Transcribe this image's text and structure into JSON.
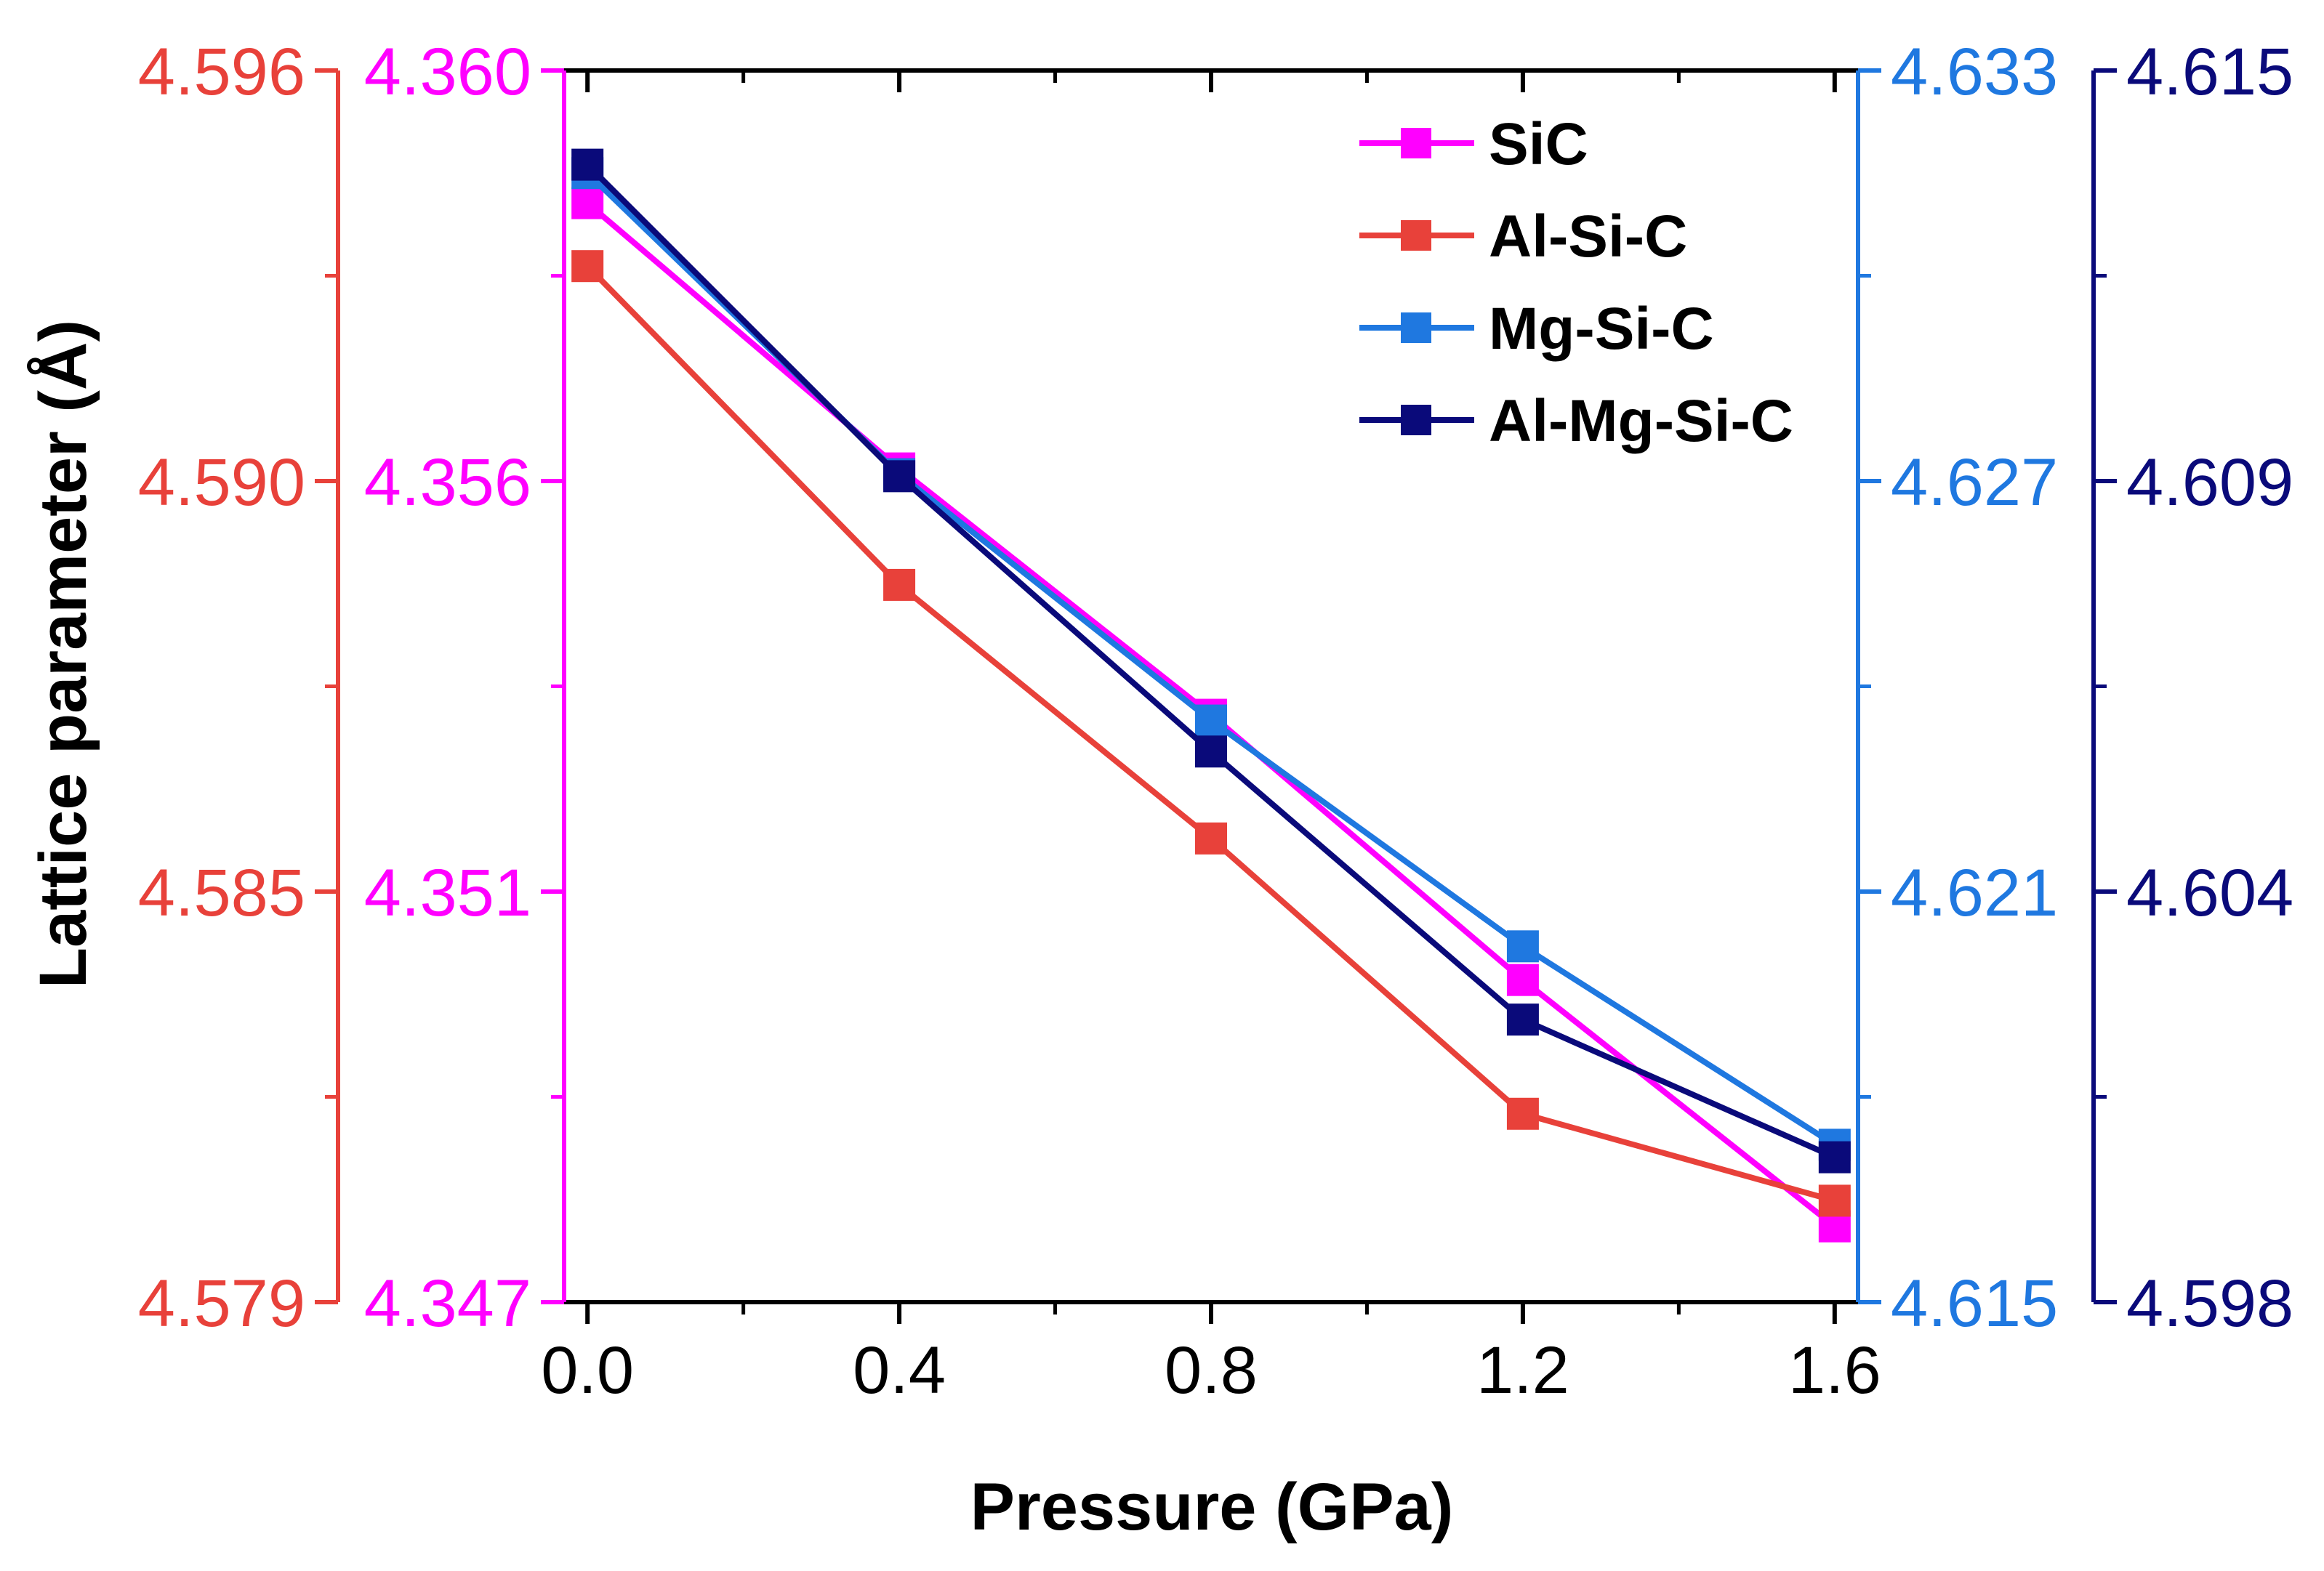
{
  "chart_data": {
    "type": "line",
    "xlabel": "Pressure (GPa)",
    "ylabel": "Lattice parameter (Å)",
    "x": [
      0.0,
      0.4,
      0.8,
      1.2,
      1.6
    ],
    "xlim": [
      -0.03,
      1.63
    ],
    "x_ticks": [
      0.0,
      0.4,
      0.8,
      1.2,
      1.6
    ],
    "x_tick_labels": [
      "0.0",
      "0.4",
      "0.8",
      "1.2",
      "1.6"
    ],
    "y_axes": [
      {
        "id": "al-si-c-axis",
        "series": "Al-Si-C",
        "position": "outer-left",
        "color": "#e8413a",
        "ylim": [
          4.579,
          4.596
        ],
        "tick_labels": [
          "4.596",
          "4.590",
          "4.585",
          "4.579"
        ]
      },
      {
        "id": "sic-axis",
        "series": "SiC",
        "position": "left",
        "color": "#ff00ff",
        "ylim": [
          4.347,
          4.36
        ],
        "tick_labels": [
          "4.360",
          "4.356",
          "4.351",
          "4.347"
        ]
      },
      {
        "id": "mg-si-c-axis",
        "series": "Mg-Si-C",
        "position": "right",
        "color": "#1f78e0",
        "ylim": [
          4.615,
          4.633
        ],
        "tick_labels": [
          "4.633",
          "4.627",
          "4.621",
          "4.615"
        ]
      },
      {
        "id": "al-mg-si-c-axis",
        "series": "Al-Mg-Si-C",
        "position": "outer-right",
        "color": "#0a0a7a",
        "ylim": [
          4.598,
          4.615
        ],
        "tick_labels": [
          "4.615",
          "4.609",
          "4.604",
          "4.598"
        ]
      }
    ],
    "series": [
      {
        "name": "SiC",
        "axis": "sic-axis",
        "color": "#ff00ff",
        "values": [
          4.3586,
          4.3558,
          4.3532,
          4.3504,
          4.3478
        ]
      },
      {
        "name": "Al-Si-C",
        "axis": "al-si-c-axis",
        "color": "#e8413a",
        "values": [
          4.5933,
          4.5889,
          4.5854,
          4.5816,
          4.5804
        ]
      },
      {
        "name": "Mg-Si-C",
        "axis": "mg-si-c-axis",
        "color": "#1f78e0",
        "values": [
          4.6315,
          4.6271,
          4.6235,
          4.6202,
          4.6173
        ]
      },
      {
        "name": "Al-Mg-Si-C",
        "axis": "al-mg-si-c-axis",
        "color": "#0a0a7a",
        "values": [
          4.6137,
          4.6094,
          4.6056,
          4.6019,
          4.6
        ]
      }
    ],
    "legend": {
      "location": "top-right",
      "entries": [
        "SiC",
        "Al-Si-C",
        "Mg-Si-C",
        "Al-Mg-Si-C"
      ]
    },
    "grid": false
  }
}
